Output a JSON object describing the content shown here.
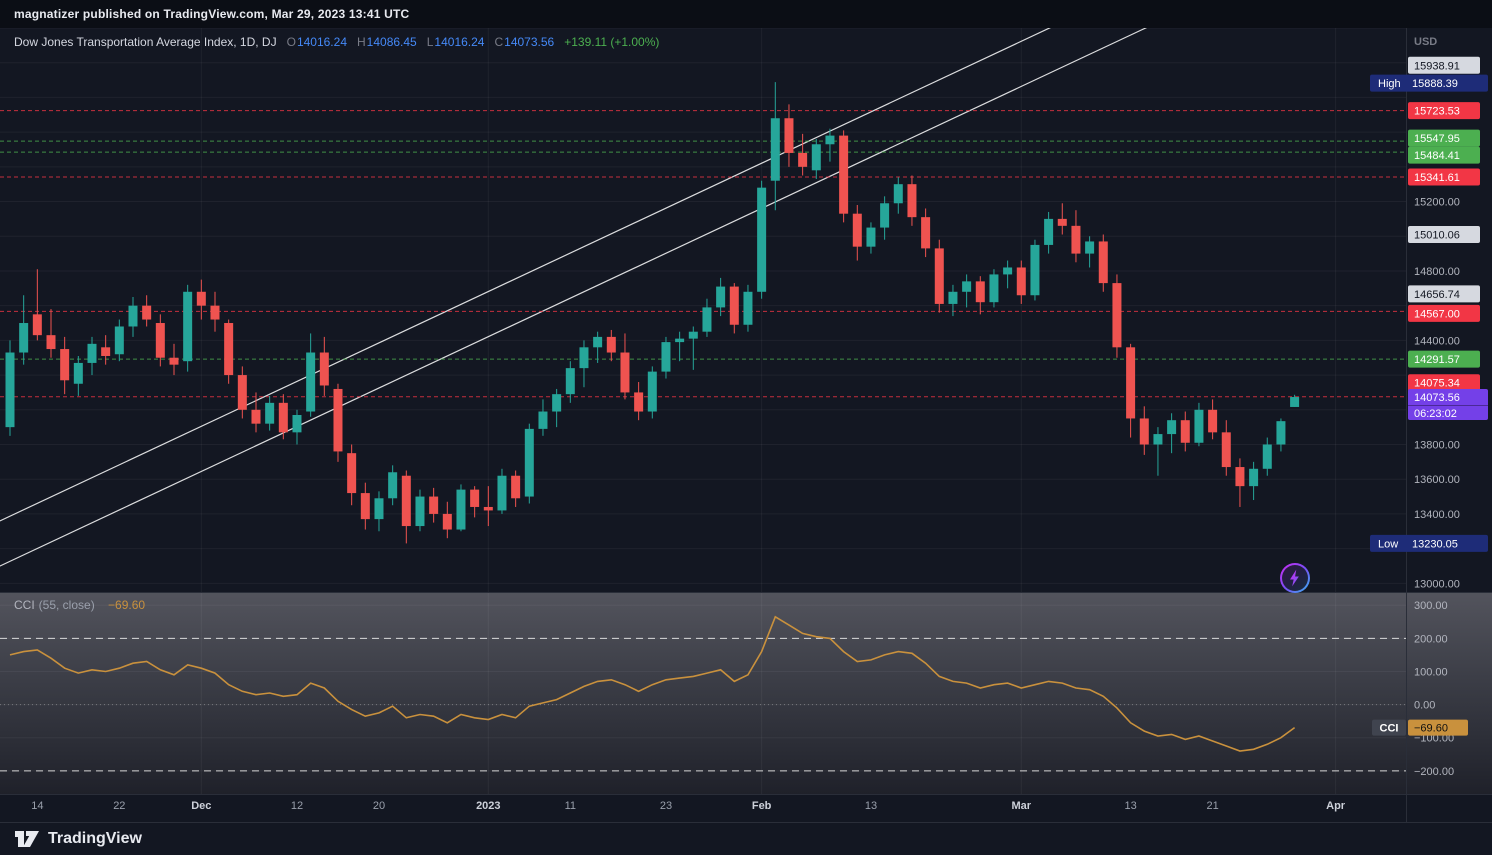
{
  "attribution": {
    "text": "magnatizer published on TradingView.com, Mar 29, 2023 13:41 UTC"
  },
  "legend": {
    "title": "Dow Jones Transportation Average Index, 1D, DJ",
    "o_label": "O",
    "o": "14016.24",
    "h_label": "H",
    "h": "14086.45",
    "l_label": "L",
    "l": "14016.24",
    "c_label": "C",
    "c": "14073.56",
    "change": "+139.11 (+1.00%)"
  },
  "footer": {
    "brand": "TradingView"
  },
  "colors": {
    "bg": "#131722",
    "bg_dark": "#0b0e15",
    "panel_border": "#2a2e39",
    "up": "#26a69a",
    "down": "#ef5350",
    "text_bright": "#e8eaf0",
    "text_dim": "#787b86",
    "axis_text": "#b2b5be",
    "time_text": "#9aa0ac",
    "ohlc_value": "#4589f7",
    "change_up": "#4caf50",
    "red_label": "#f23645",
    "green_label": "#4caf50",
    "gray_label": "#d6d9e0",
    "gray_label_text": "#131722",
    "navy_label": "#1e2c78",
    "purple_label": "#7440e8",
    "white_line": "#ffffff",
    "grid": "rgba(255,255,255,0.05)",
    "cci_line": "#c9913d"
  },
  "chart_data": {
    "type": "candlestick",
    "symbol": "Dow Jones Transportation Average Index",
    "interval": "1D",
    "exchange": "DJ",
    "currency": "USD",
    "price_range": [
      12950,
      16200
    ],
    "price_ticks": [
      15200,
      14800,
      14400,
      13800,
      13600,
      13400,
      13000
    ],
    "bars": [
      [
        "2022-11-10",
        13900,
        14400,
        13850,
        14330
      ],
      [
        "2022-11-11",
        14330,
        14660,
        14260,
        14500
      ],
      [
        "2022-11-14",
        14550,
        14810,
        14400,
        14430
      ],
      [
        "2022-11-15",
        14430,
        14580,
        14300,
        14350
      ],
      [
        "2022-11-16",
        14350,
        14420,
        14090,
        14170
      ],
      [
        "2022-11-17",
        14150,
        14310,
        14080,
        14270
      ],
      [
        "2022-11-18",
        14270,
        14420,
        14200,
        14380
      ],
      [
        "2022-11-21",
        14360,
        14430,
        14260,
        14310
      ],
      [
        "2022-11-22",
        14320,
        14520,
        14280,
        14480
      ],
      [
        "2022-11-23",
        14480,
        14650,
        14420,
        14600
      ],
      [
        "2022-11-25",
        14600,
        14660,
        14480,
        14520
      ],
      [
        "2022-11-28",
        14500,
        14550,
        14250,
        14300
      ],
      [
        "2022-11-29",
        14300,
        14380,
        14200,
        14260
      ],
      [
        "2022-11-30",
        14280,
        14720,
        14220,
        14680
      ],
      [
        "2022-12-01",
        14680,
        14750,
        14520,
        14600
      ],
      [
        "2022-12-02",
        14600,
        14680,
        14450,
        14520
      ],
      [
        "2022-12-05",
        14500,
        14520,
        14150,
        14200
      ],
      [
        "2022-12-06",
        14200,
        14250,
        13950,
        14000
      ],
      [
        "2022-12-07",
        14000,
        14100,
        13870,
        13920
      ],
      [
        "2022-12-08",
        13920,
        14080,
        13880,
        14040
      ],
      [
        "2022-12-09",
        14040,
        14090,
        13830,
        13870
      ],
      [
        "2022-12-12",
        13870,
        14000,
        13800,
        13970
      ],
      [
        "2022-12-13",
        13990,
        14440,
        13960,
        14330
      ],
      [
        "2022-12-14",
        14330,
        14420,
        14080,
        14140
      ],
      [
        "2022-12-15",
        14120,
        14150,
        13700,
        13760
      ],
      [
        "2022-12-16",
        13750,
        13800,
        13450,
        13520
      ],
      [
        "2022-12-19",
        13520,
        13580,
        13310,
        13370
      ],
      [
        "2022-12-20",
        13370,
        13530,
        13300,
        13490
      ],
      [
        "2022-12-21",
        13490,
        13680,
        13450,
        13640
      ],
      [
        "2022-12-22",
        13620,
        13650,
        13230.05,
        13330
      ],
      [
        "2022-12-23",
        13330,
        13540,
        13300,
        13500
      ],
      [
        "2022-12-27",
        13500,
        13550,
        13350,
        13400
      ],
      [
        "2022-12-28",
        13400,
        13470,
        13260,
        13310
      ],
      [
        "2022-12-29",
        13310,
        13570,
        13300,
        13540
      ],
      [
        "2022-12-30",
        13540,
        13560,
        13380,
        13440
      ],
      [
        "2023-01-03",
        13440,
        13560,
        13330,
        13420
      ],
      [
        "2023-01-04",
        13420,
        13660,
        13400,
        13620
      ],
      [
        "2023-01-05",
        13620,
        13650,
        13440,
        13490
      ],
      [
        "2023-01-06",
        13500,
        13920,
        13460,
        13890
      ],
      [
        "2023-01-09",
        13890,
        14060,
        13850,
        13990
      ],
      [
        "2023-01-10",
        13990,
        14120,
        13900,
        14090
      ],
      [
        "2023-01-11",
        14090,
        14280,
        14040,
        14240
      ],
      [
        "2023-01-12",
        14240,
        14400,
        14130,
        14360
      ],
      [
        "2023-01-13",
        14360,
        14450,
        14270,
        14420
      ],
      [
        "2023-01-17",
        14420,
        14460,
        14280,
        14330
      ],
      [
        "2023-01-18",
        14330,
        14440,
        14060,
        14100
      ],
      [
        "2023-01-19",
        14100,
        14160,
        13940,
        13990
      ],
      [
        "2023-01-20",
        13990,
        14250,
        13950,
        14220
      ],
      [
        "2023-01-23",
        14220,
        14420,
        14180,
        14390
      ],
      [
        "2023-01-24",
        14390,
        14450,
        14280,
        14410
      ],
      [
        "2023-01-25",
        14410,
        14480,
        14230,
        14450
      ],
      [
        "2023-01-26",
        14450,
        14640,
        14420,
        14590
      ],
      [
        "2023-01-27",
        14590,
        14760,
        14540,
        14710
      ],
      [
        "2023-01-30",
        14710,
        14730,
        14440,
        14490
      ],
      [
        "2023-01-31",
        14490,
        14720,
        14450,
        14680
      ],
      [
        "2023-02-01",
        14680,
        15320,
        14640,
        15280
      ],
      [
        "2023-02-02",
        15320,
        15888.39,
        15150,
        15680
      ],
      [
        "2023-02-03",
        15680,
        15760,
        15400,
        15480
      ],
      [
        "2023-02-06",
        15480,
        15590,
        15350,
        15400
      ],
      [
        "2023-02-07",
        15380,
        15560,
        15330,
        15530
      ],
      [
        "2023-02-08",
        15530,
        15620,
        15430,
        15580
      ],
      [
        "2023-02-09",
        15580,
        15610,
        15080,
        15130
      ],
      [
        "2023-02-10",
        15130,
        15180,
        14860,
        14940
      ],
      [
        "2023-02-13",
        14940,
        15080,
        14900,
        15050
      ],
      [
        "2023-02-14",
        15050,
        15230,
        14980,
        15190
      ],
      [
        "2023-02-15",
        15190,
        15340,
        15130,
        15300
      ],
      [
        "2023-02-16",
        15300,
        15350,
        15060,
        15110
      ],
      [
        "2023-02-17",
        15110,
        15160,
        14880,
        14930
      ],
      [
        "2023-02-21",
        14930,
        14980,
        14560,
        14610
      ],
      [
        "2023-02-22",
        14610,
        14720,
        14540,
        14680
      ],
      [
        "2023-02-23",
        14680,
        14780,
        14590,
        14740
      ],
      [
        "2023-02-24",
        14740,
        14770,
        14550,
        14620
      ],
      [
        "2023-02-27",
        14620,
        14810,
        14590,
        14780
      ],
      [
        "2023-02-28",
        14780,
        14860,
        14700,
        14820
      ],
      [
        "2023-03-01",
        14820,
        14860,
        14610,
        14660
      ],
      [
        "2023-03-02",
        14660,
        14980,
        14630,
        14950
      ],
      [
        "2023-03-03",
        14950,
        15140,
        14900,
        15100
      ],
      [
        "2023-03-06",
        15100,
        15190,
        15010,
        15060
      ],
      [
        "2023-03-07",
        15060,
        15150,
        14850,
        14900
      ],
      [
        "2023-03-08",
        14900,
        15000,
        14820,
        14970
      ],
      [
        "2023-03-09",
        14970,
        15010,
        14680,
        14730
      ],
      [
        "2023-03-10",
        14730,
        14780,
        14300,
        14360
      ],
      [
        "2023-03-13",
        14360,
        14380,
        13840,
        13950
      ],
      [
        "2023-03-14",
        13950,
        14020,
        13740,
        13800
      ],
      [
        "2023-03-15",
        13800,
        13900,
        13620,
        13860
      ],
      [
        "2023-03-16",
        13860,
        13980,
        13750,
        13940
      ],
      [
        "2023-03-17",
        13940,
        13990,
        13760,
        13810
      ],
      [
        "2023-03-20",
        13810,
        14040,
        13790,
        14000
      ],
      [
        "2023-03-21",
        14000,
        14060,
        13830,
        13870
      ],
      [
        "2023-03-22",
        13870,
        13940,
        13620,
        13670
      ],
      [
        "2023-03-23",
        13670,
        13720,
        13440,
        13560
      ],
      [
        "2023-03-24",
        13560,
        13700,
        13480,
        13660
      ],
      [
        "2023-03-27",
        13660,
        13840,
        13620,
        13800
      ],
      [
        "2023-03-28",
        13800,
        13950,
        13760,
        13934.45
      ],
      [
        "2023-03-29",
        14016.24,
        14086.45,
        14016.24,
        14073.56
      ]
    ],
    "time_labels": [
      {
        "label": "14",
        "index": 2,
        "major": false
      },
      {
        "label": "22",
        "index": 8,
        "major": false
      },
      {
        "label": "Dec",
        "index": 14,
        "major": true
      },
      {
        "label": "12",
        "index": 21,
        "major": false
      },
      {
        "label": "20",
        "index": 27,
        "major": false
      },
      {
        "label": "2023",
        "index": 35,
        "major": true
      },
      {
        "label": "11",
        "index": 41,
        "major": false
      },
      {
        "label": "23",
        "index": 48,
        "major": false
      },
      {
        "label": "Feb",
        "index": 55,
        "major": true
      },
      {
        "label": "13",
        "index": 63,
        "major": false
      },
      {
        "label": "Mar",
        "index": 74,
        "major": true
      },
      {
        "label": "13",
        "index": 82,
        "major": false
      },
      {
        "label": "21",
        "index": 88,
        "major": false
      },
      {
        "label": "Apr",
        "index": 97,
        "major": true
      }
    ],
    "levels": [
      {
        "price": 15938.91,
        "style": "gray",
        "line": false,
        "nudge": -8
      },
      {
        "price": 15888.39,
        "style": "navy",
        "prefix": "High",
        "line": false,
        "nudge": 1
      },
      {
        "price": 15723.53,
        "style": "red",
        "line": true
      },
      {
        "price": 15547.95,
        "style": "green",
        "line": true,
        "nudge": -3
      },
      {
        "price": 15484.41,
        "style": "green",
        "line": true,
        "nudge": 3
      },
      {
        "price": 15341.61,
        "style": "red",
        "line": true
      },
      {
        "price": 15010.06,
        "style": "gray",
        "line": false
      },
      {
        "price": 14656.74,
        "style": "gray",
        "line": false,
        "nudge": -2
      },
      {
        "price": 14567.0,
        "style": "red",
        "line": true,
        "nudge": 2
      },
      {
        "price": 14291.57,
        "style": "green",
        "line": true
      },
      {
        "price": 14075.34,
        "style": "red",
        "line": true,
        "nudge": -14
      },
      {
        "price": 13230.05,
        "style": "navy",
        "prefix": "Low",
        "line": false
      }
    ],
    "current": {
      "price": 14073.56,
      "countdown": "06:23:02"
    },
    "channel": {
      "base_index": 0,
      "upper_price": 13387,
      "lower_price": 13127,
      "slope_per_bar": 36.98
    },
    "indicator": {
      "type": "line",
      "name": "CCI",
      "params": "(55, close)",
      "value": -69.6,
      "display_value": "−69.60",
      "range": [
        -270,
        340
      ],
      "bands": [
        200,
        -200
      ],
      "zero_line": 0,
      "axis_ticks": [
        300,
        200,
        100,
        0,
        -100,
        -200
      ],
      "values": [
        150,
        160,
        165,
        140,
        110,
        95,
        105,
        100,
        110,
        125,
        130,
        105,
        90,
        120,
        110,
        95,
        60,
        40,
        30,
        35,
        25,
        30,
        65,
        50,
        10,
        -15,
        -35,
        -25,
        -5,
        -40,
        -30,
        -35,
        -55,
        -30,
        -40,
        -45,
        -30,
        -40,
        -5,
        5,
        15,
        35,
        55,
        70,
        75,
        60,
        40,
        60,
        75,
        80,
        85,
        95,
        105,
        70,
        90,
        160,
        265,
        240,
        215,
        205,
        200,
        160,
        130,
        135,
        150,
        160,
        155,
        125,
        85,
        70,
        65,
        50,
        60,
        65,
        50,
        60,
        70,
        65,
        50,
        45,
        25,
        -10,
        -55,
        -80,
        -95,
        -90,
        -105,
        -95,
        -110,
        -125,
        -140,
        -135,
        -120,
        -100,
        -69.6
      ]
    }
  }
}
